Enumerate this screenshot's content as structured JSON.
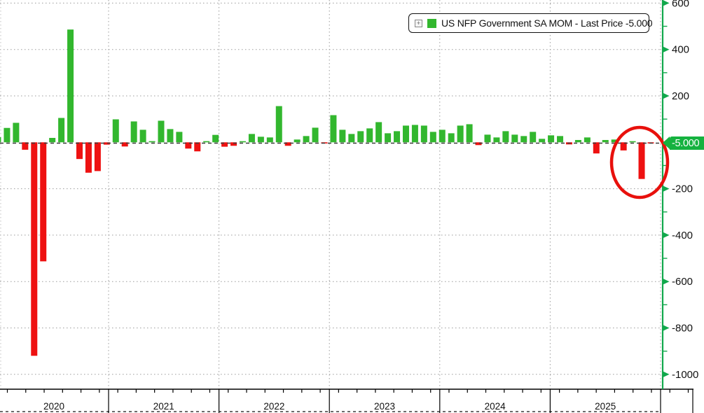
{
  "legend": {
    "expand_icon": "+",
    "swatch_color": "#32b72e",
    "label": "US NFP Government SA MOM - Last Price -5.000"
  },
  "last_price": {
    "value": "-5.000"
  },
  "colors": {
    "positive_bar": "#32b72e",
    "negative_bar": "#ee1111",
    "axis_green": "#11a84c",
    "price_tag_bg": "#15b23f",
    "price_tag_text": "#ffffff",
    "grid_dotted": "#9b9b9b",
    "left_edge_grid": "#c0c0c0",
    "last_price_line": "#3c3c3c",
    "axis_black": "#000000",
    "annotation_circle": "#e8100c",
    "text": "#111111",
    "background": "#ffffff"
  },
  "y_axis": {
    "labeled_ticks": [
      600,
      400,
      200,
      -200,
      -400,
      -600,
      -800,
      -1000
    ],
    "minor_tick_step": 100
  },
  "x_axis": {
    "years": [
      "2020",
      "2021",
      "2022",
      "2023",
      "2024",
      "2025"
    ]
  },
  "annotation": {
    "type": "ellipse",
    "description": "red circle highlighting the latest plunge in government payrolls"
  },
  "chart_data": {
    "type": "bar",
    "title": "US NFP Government SA MOM - Last Price -5.000",
    "xlabel": "",
    "ylabel": "",
    "ylim": [
      -1000,
      600
    ],
    "grid": true,
    "legend_position": "top-right",
    "last_price": -5.0,
    "months": [
      "2019-12",
      "2020-01",
      "2020-02",
      "2020-03",
      "2020-04",
      "2020-05",
      "2020-06",
      "2020-07",
      "2020-08",
      "2020-09",
      "2020-10",
      "2020-11",
      "2020-12",
      "2021-01",
      "2021-02",
      "2021-03",
      "2021-04",
      "2021-05",
      "2021-06",
      "2021-07",
      "2021-08",
      "2021-09",
      "2021-10",
      "2021-11",
      "2021-12",
      "2022-01",
      "2022-02",
      "2022-03",
      "2022-04",
      "2022-05",
      "2022-06",
      "2022-07",
      "2022-08",
      "2022-09",
      "2022-10",
      "2022-11",
      "2022-12",
      "2023-01",
      "2023-02",
      "2023-03",
      "2023-04",
      "2023-05",
      "2023-06",
      "2023-07",
      "2023-08",
      "2023-09",
      "2023-10",
      "2023-11",
      "2023-12",
      "2024-01",
      "2024-02",
      "2024-03",
      "2024-04",
      "2024-05",
      "2024-06",
      "2024-07",
      "2024-08",
      "2024-09",
      "2024-10",
      "2024-11",
      "2024-12",
      "2025-01",
      "2025-02",
      "2025-03",
      "2025-04",
      "2025-05",
      "2025-06",
      "2025-07",
      "2025-08",
      "2025-09",
      "2025-10",
      "2025-11",
      "2025-12"
    ],
    "values": [
      22,
      62,
      84,
      -32,
      -920,
      -513,
      19,
      105,
      486,
      -72,
      -131,
      -124,
      -10,
      99,
      -18,
      90,
      54,
      5,
      93,
      57,
      45,
      -27,
      -39,
      5,
      32,
      -19,
      -15,
      3,
      36,
      24,
      21,
      156,
      -15,
      12,
      27,
      63,
      -5,
      117,
      54,
      36,
      48,
      60,
      87,
      39,
      48,
      72,
      75,
      72,
      45,
      54,
      39,
      72,
      78,
      -12,
      33,
      21,
      48,
      33,
      27,
      45,
      15,
      30,
      27,
      -9,
      10,
      21,
      -48,
      10,
      12,
      -35,
      2,
      -158,
      -5
    ]
  }
}
